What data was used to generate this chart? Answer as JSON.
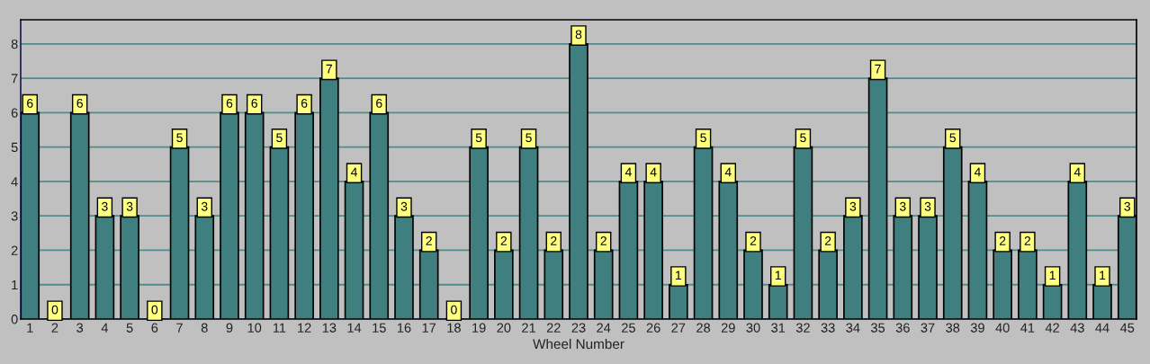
{
  "chart_data": {
    "type": "bar",
    "xlabel": "Wheel Number",
    "categories": [
      "1",
      "2",
      "3",
      "4",
      "5",
      "6",
      "7",
      "8",
      "9",
      "10",
      "11",
      "12",
      "13",
      "14",
      "15",
      "16",
      "17",
      "18",
      "19",
      "20",
      "21",
      "22",
      "23",
      "24",
      "25",
      "26",
      "27",
      "28",
      "29",
      "30",
      "31",
      "32",
      "33",
      "34",
      "35",
      "36",
      "37",
      "38",
      "39",
      "40",
      "41",
      "42",
      "43",
      "44",
      "45"
    ],
    "values": [
      6,
      0,
      6,
      3,
      3,
      0,
      5,
      3,
      6,
      6,
      5,
      6,
      7,
      4,
      6,
      3,
      2,
      0,
      5,
      2,
      5,
      2,
      8,
      2,
      4,
      4,
      1,
      5,
      4,
      2,
      1,
      5,
      2,
      3,
      7,
      3,
      3,
      5,
      4,
      2,
      2,
      1,
      4,
      1,
      3
    ],
    "color": "#3f7f7f",
    "ylim": [
      0,
      8.7
    ],
    "yticks": [
      0,
      1,
      2,
      3,
      4,
      5,
      6,
      7,
      8
    ],
    "grid": "y",
    "data_labels": true
  }
}
